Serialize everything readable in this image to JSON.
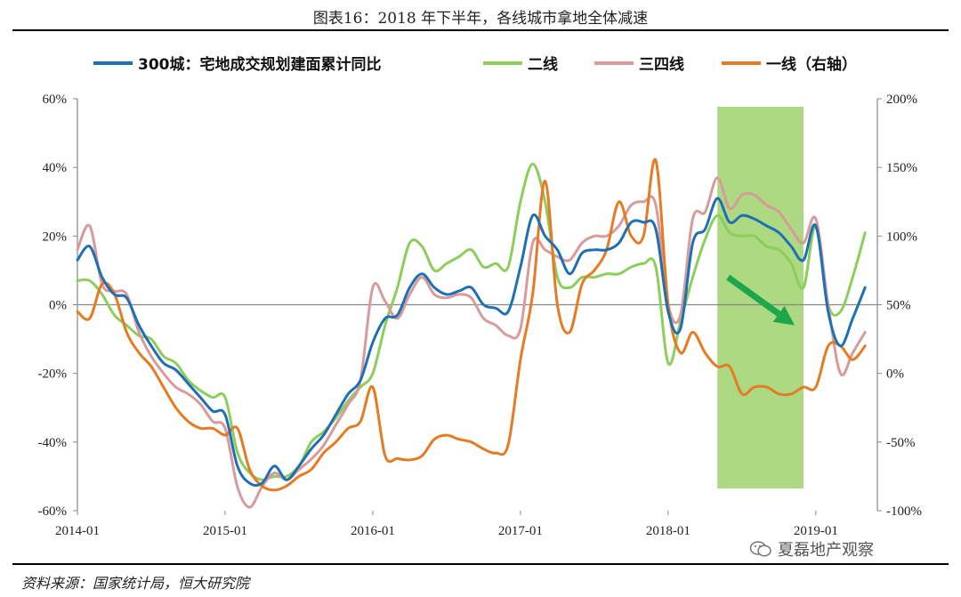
{
  "title": "图表16：2018 年下半年，各线城市拿地全体减速",
  "source": "资料来源：国家统计局，恒大研究院",
  "watermark": "夏磊地产观察",
  "chart_data": {
    "type": "line",
    "title": "图表16：2018 年下半年，各线城市拿地全体减速",
    "x_ticks": [
      "2014-01",
      "2015-01",
      "2016-01",
      "2017-01",
      "2018-01",
      "2019-01"
    ],
    "x_range": [
      "2014-01",
      "2019-06"
    ],
    "y_left": {
      "range": [
        -60,
        60
      ],
      "ticks": [
        "60%",
        "40%",
        "20%",
        "0%",
        "-20%",
        "-40%",
        "-60%"
      ]
    },
    "y_right": {
      "range": [
        -100,
        200
      ],
      "ticks": [
        "200%",
        "150%",
        "100%",
        "50%",
        "0%",
        "-50%",
        "-100%"
      ]
    },
    "highlight": {
      "from": "2018-05",
      "to": "2018-12",
      "color": "#a9d77b"
    },
    "annotation": {
      "type": "arrow",
      "color": "#1ea64a",
      "from": [
        "2018-05",
        8
      ],
      "to": [
        "2018-12",
        -6
      ]
    },
    "grid": false,
    "legend_position": "top",
    "series": [
      {
        "name": "300城：宅地成交规划建面累计同比",
        "axis": "left",
        "color": "#1f6fb5",
        "points": [
          [
            "2014-01",
            13
          ],
          [
            "2014-02",
            17
          ],
          [
            "2014-03",
            8
          ],
          [
            "2014-04",
            3
          ],
          [
            "2014-05",
            2
          ],
          [
            "2014-06",
            -6
          ],
          [
            "2014-07",
            -12
          ],
          [
            "2014-08",
            -17
          ],
          [
            "2014-09",
            -19
          ],
          [
            "2014-10",
            -23
          ],
          [
            "2014-11",
            -27
          ],
          [
            "2014-12",
            -31
          ],
          [
            "2015-01",
            -32
          ],
          [
            "2015-02",
            -47
          ],
          [
            "2015-03",
            -52
          ],
          [
            "2015-04",
            -52
          ],
          [
            "2015-05",
            -47
          ],
          [
            "2015-06",
            -51
          ],
          [
            "2015-07",
            -47
          ],
          [
            "2015-08",
            -42
          ],
          [
            "2015-09",
            -38
          ],
          [
            "2015-10",
            -32
          ],
          [
            "2015-11",
            -26
          ],
          [
            "2015-12",
            -22
          ],
          [
            "2016-01",
            -11
          ],
          [
            "2016-02",
            -4
          ],
          [
            "2016-03",
            -3
          ],
          [
            "2016-04",
            5
          ],
          [
            "2016-05",
            9
          ],
          [
            "2016-06",
            5
          ],
          [
            "2016-07",
            3
          ],
          [
            "2016-08",
            4
          ],
          [
            "2016-09",
            5
          ],
          [
            "2016-10",
            0
          ],
          [
            "2016-11",
            -1
          ],
          [
            "2016-12",
            -2
          ],
          [
            "2017-01",
            11
          ],
          [
            "2017-02",
            26
          ],
          [
            "2017-03",
            20
          ],
          [
            "2017-04",
            16
          ],
          [
            "2017-05",
            9
          ],
          [
            "2017-06",
            15
          ],
          [
            "2017-07",
            16
          ],
          [
            "2017-08",
            16
          ],
          [
            "2017-09",
            18
          ],
          [
            "2017-10",
            24
          ],
          [
            "2017-11",
            24
          ],
          [
            "2017-12",
            22
          ],
          [
            "2018-01",
            -2
          ],
          [
            "2018-02",
            -7
          ],
          [
            "2018-03",
            18
          ],
          [
            "2018-04",
            22
          ],
          [
            "2018-05",
            31
          ],
          [
            "2018-06",
            24
          ],
          [
            "2018-07",
            26
          ],
          [
            "2018-08",
            25
          ],
          [
            "2018-09",
            23
          ],
          [
            "2018-10",
            21
          ],
          [
            "2018-11",
            17
          ],
          [
            "2018-12",
            13
          ],
          [
            "2019-01",
            23
          ],
          [
            "2019-02",
            -2
          ],
          [
            "2019-03",
            -12
          ],
          [
            "2019-04",
            -4
          ],
          [
            "2019-05",
            5
          ]
        ]
      },
      {
        "name": "二线",
        "axis": "left",
        "color": "#8cce5b",
        "points": [
          [
            "2014-01",
            7
          ],
          [
            "2014-02",
            7
          ],
          [
            "2014-03",
            3
          ],
          [
            "2014-04",
            -3
          ],
          [
            "2014-05",
            -6
          ],
          [
            "2014-06",
            -9
          ],
          [
            "2014-07",
            -10
          ],
          [
            "2014-08",
            -15
          ],
          [
            "2014-09",
            -17
          ],
          [
            "2014-10",
            -22
          ],
          [
            "2014-11",
            -25
          ],
          [
            "2014-12",
            -27
          ],
          [
            "2015-01",
            -27
          ],
          [
            "2015-02",
            -43
          ],
          [
            "2015-03",
            -49
          ],
          [
            "2015-04",
            -51
          ],
          [
            "2015-05",
            -50
          ],
          [
            "2015-06",
            -50
          ],
          [
            "2015-07",
            -47
          ],
          [
            "2015-08",
            -40
          ],
          [
            "2015-09",
            -37
          ],
          [
            "2015-10",
            -33
          ],
          [
            "2015-11",
            -28
          ],
          [
            "2015-12",
            -24
          ],
          [
            "2016-01",
            -20
          ],
          [
            "2016-02",
            -6
          ],
          [
            "2016-03",
            5
          ],
          [
            "2016-04",
            18
          ],
          [
            "2016-05",
            17
          ],
          [
            "2016-06",
            10
          ],
          [
            "2016-07",
            12
          ],
          [
            "2016-08",
            14
          ],
          [
            "2016-09",
            16
          ],
          [
            "2016-10",
            11
          ],
          [
            "2016-11",
            12
          ],
          [
            "2016-12",
            11
          ],
          [
            "2017-01",
            30
          ],
          [
            "2017-02",
            41
          ],
          [
            "2017-03",
            30
          ],
          [
            "2017-04",
            8
          ],
          [
            "2017-05",
            5
          ],
          [
            "2017-06",
            8
          ],
          [
            "2017-07",
            8
          ],
          [
            "2017-08",
            9
          ],
          [
            "2017-09",
            9
          ],
          [
            "2017-10",
            11
          ],
          [
            "2017-11",
            12
          ],
          [
            "2017-12",
            11
          ],
          [
            "2018-01",
            -17
          ],
          [
            "2018-02",
            -5
          ],
          [
            "2018-03",
            8
          ],
          [
            "2018-04",
            19
          ],
          [
            "2018-05",
            26
          ],
          [
            "2018-06",
            21
          ],
          [
            "2018-07",
            20
          ],
          [
            "2018-08",
            20
          ],
          [
            "2018-09",
            17
          ],
          [
            "2018-10",
            16
          ],
          [
            "2018-11",
            12
          ],
          [
            "2018-12",
            5
          ],
          [
            "2019-01",
            23
          ],
          [
            "2019-02",
            0
          ],
          [
            "2019-03",
            -2
          ],
          [
            "2019-04",
            8
          ],
          [
            "2019-05",
            21
          ]
        ]
      },
      {
        "name": "三四线",
        "axis": "left",
        "color": "#d89a9a",
        "points": [
          [
            "2014-01",
            16
          ],
          [
            "2014-02",
            23
          ],
          [
            "2014-03",
            6
          ],
          [
            "2014-04",
            4
          ],
          [
            "2014-05",
            3
          ],
          [
            "2014-06",
            -8
          ],
          [
            "2014-07",
            -15
          ],
          [
            "2014-08",
            -20
          ],
          [
            "2014-09",
            -24
          ],
          [
            "2014-10",
            -26
          ],
          [
            "2014-11",
            -29
          ],
          [
            "2014-12",
            -34
          ],
          [
            "2015-01",
            -36
          ],
          [
            "2015-02",
            -53
          ],
          [
            "2015-03",
            -59
          ],
          [
            "2015-04",
            -53
          ],
          [
            "2015-05",
            -49
          ],
          [
            "2015-06",
            -51
          ],
          [
            "2015-07",
            -48
          ],
          [
            "2015-08",
            -45
          ],
          [
            "2015-09",
            -41
          ],
          [
            "2015-10",
            -35
          ],
          [
            "2015-11",
            -29
          ],
          [
            "2015-12",
            -22
          ],
          [
            "2016-01",
            5
          ],
          [
            "2016-02",
            1
          ],
          [
            "2016-03",
            -4
          ],
          [
            "2016-04",
            3
          ],
          [
            "2016-05",
            8
          ],
          [
            "2016-06",
            3
          ],
          [
            "2016-07",
            2
          ],
          [
            "2016-08",
            3
          ],
          [
            "2016-09",
            2
          ],
          [
            "2016-10",
            -4
          ],
          [
            "2016-11",
            -6
          ],
          [
            "2016-12",
            -9
          ],
          [
            "2017-01",
            -7
          ],
          [
            "2017-02",
            18
          ],
          [
            "2017-03",
            16
          ],
          [
            "2017-04",
            14
          ],
          [
            "2017-05",
            13
          ],
          [
            "2017-06",
            18
          ],
          [
            "2017-07",
            20
          ],
          [
            "2017-08",
            20
          ],
          [
            "2017-09",
            23
          ],
          [
            "2017-10",
            29
          ],
          [
            "2017-11",
            30
          ],
          [
            "2017-12",
            29
          ],
          [
            "2018-01",
            0
          ],
          [
            "2018-02",
            -3
          ],
          [
            "2018-03",
            25
          ],
          [
            "2018-04",
            27
          ],
          [
            "2018-05",
            37
          ],
          [
            "2018-06",
            28
          ],
          [
            "2018-07",
            32
          ],
          [
            "2018-08",
            32
          ],
          [
            "2018-09",
            29
          ],
          [
            "2018-10",
            27
          ],
          [
            "2018-11",
            22
          ],
          [
            "2018-12",
            18
          ],
          [
            "2019-01",
            25
          ],
          [
            "2019-02",
            0
          ],
          [
            "2019-03",
            -20
          ],
          [
            "2019-04",
            -14
          ],
          [
            "2019-05",
            -8
          ]
        ]
      },
      {
        "name": "一线（右轴）",
        "axis": "right",
        "color": "#e57b23",
        "points": [
          [
            "2014-01",
            45
          ],
          [
            "2014-02",
            40
          ],
          [
            "2014-03",
            65
          ],
          [
            "2014-04",
            58
          ],
          [
            "2014-05",
            30
          ],
          [
            "2014-06",
            15
          ],
          [
            "2014-07",
            5
          ],
          [
            "2014-08",
            -10
          ],
          [
            "2014-09",
            -25
          ],
          [
            "2014-10",
            -35
          ],
          [
            "2014-11",
            -40
          ],
          [
            "2014-12",
            -40
          ],
          [
            "2015-01",
            -45
          ],
          [
            "2015-02",
            -40
          ],
          [
            "2015-03",
            -70
          ],
          [
            "2015-04",
            -82
          ],
          [
            "2015-05",
            -85
          ],
          [
            "2015-06",
            -82
          ],
          [
            "2015-07",
            -75
          ],
          [
            "2015-08",
            -70
          ],
          [
            "2015-09",
            -58
          ],
          [
            "2015-10",
            -50
          ],
          [
            "2015-11",
            -40
          ],
          [
            "2015-12",
            -35
          ],
          [
            "2016-01",
            -10
          ],
          [
            "2016-02",
            -60
          ],
          [
            "2016-03",
            -62
          ],
          [
            "2016-04",
            -63
          ],
          [
            "2016-05",
            -60
          ],
          [
            "2016-06",
            -48
          ],
          [
            "2016-07",
            -45
          ],
          [
            "2016-08",
            -48
          ],
          [
            "2016-09",
            -50
          ],
          [
            "2016-10",
            -55
          ],
          [
            "2016-11",
            -58
          ],
          [
            "2016-12",
            -52
          ],
          [
            "2017-01",
            10
          ],
          [
            "2017-02",
            58
          ],
          [
            "2017-03",
            140
          ],
          [
            "2017-04",
            50
          ],
          [
            "2017-05",
            30
          ],
          [
            "2017-06",
            65
          ],
          [
            "2017-07",
            75
          ],
          [
            "2017-08",
            90
          ],
          [
            "2017-09",
            125
          ],
          [
            "2017-10",
            100
          ],
          [
            "2017-11",
            100
          ],
          [
            "2017-12",
            155
          ],
          [
            "2018-01",
            50
          ],
          [
            "2018-02",
            15
          ],
          [
            "2018-03",
            30
          ],
          [
            "2018-04",
            15
          ],
          [
            "2018-05",
            5
          ],
          [
            "2018-06",
            5
          ],
          [
            "2018-07",
            -15
          ],
          [
            "2018-08",
            -10
          ],
          [
            "2018-09",
            -10
          ],
          [
            "2018-10",
            -15
          ],
          [
            "2018-11",
            -15
          ],
          [
            "2018-12",
            -10
          ],
          [
            "2019-01",
            -10
          ],
          [
            "2019-02",
            20
          ],
          [
            "2019-03",
            20
          ],
          [
            "2019-04",
            10
          ],
          [
            "2019-05",
            20
          ]
        ]
      }
    ]
  }
}
